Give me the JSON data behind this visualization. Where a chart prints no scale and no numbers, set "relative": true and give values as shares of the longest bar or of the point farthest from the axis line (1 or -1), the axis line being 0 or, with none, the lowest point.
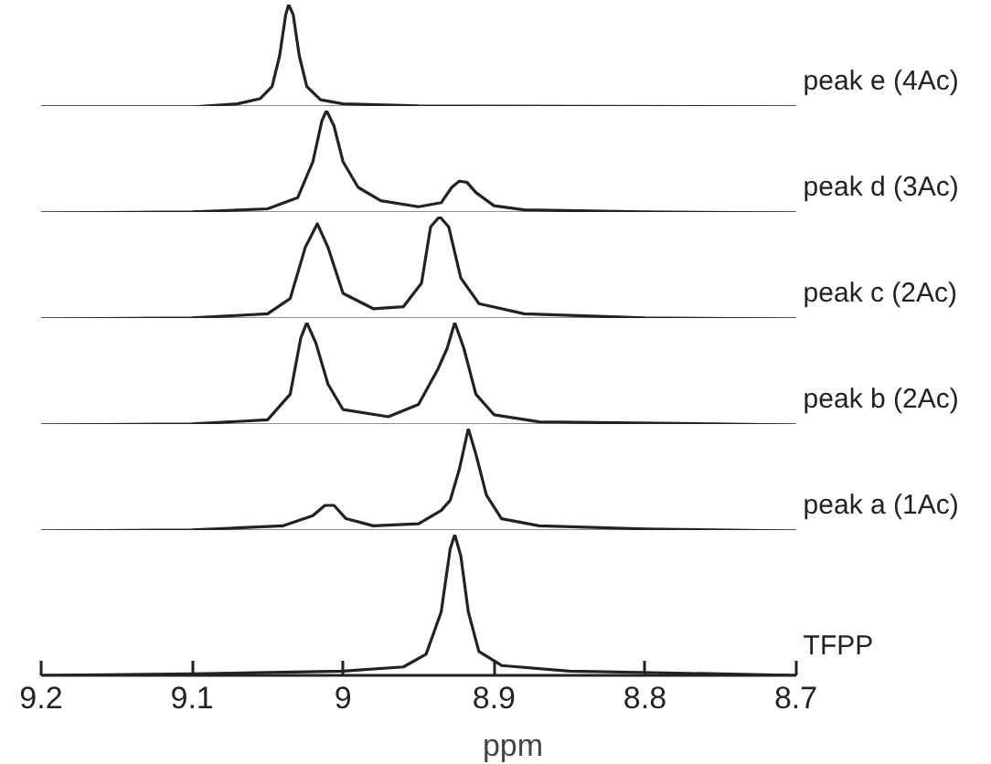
{
  "chart_data": [
    {
      "type": "line",
      "relative": true,
      "xlim": [
        9.2,
        8.7
      ],
      "tick_labels": false,
      "series": [
        {
          "name": "peak e (4Ac)",
          "color": "#222222",
          "x": [
            9.2,
            9.1,
            9.07,
            9.055,
            9.047,
            9.042,
            9.038,
            9.036,
            9.033,
            9.029,
            9.024,
            9.015,
            9.0,
            8.95,
            8.7
          ],
          "values": [
            0,
            0,
            0.03,
            0.08,
            0.2,
            0.5,
            0.9,
            1,
            0.9,
            0.5,
            0.2,
            0.07,
            0.03,
            0.01,
            0
          ]
        }
      ]
    },
    {
      "type": "line",
      "relative": true,
      "xlim": [
        9.2,
        8.7
      ],
      "tick_labels": false,
      "series": [
        {
          "name": "peak d (3Ac)",
          "color": "#222222",
          "x": [
            9.2,
            9.1,
            9.05,
            9.03,
            9.02,
            9.014,
            9.011,
            9.006,
            9.0,
            8.99,
            8.975,
            8.95,
            8.935,
            8.928,
            8.923,
            8.918,
            8.912,
            8.9,
            8.88,
            8.8,
            8.7
          ],
          "values": [
            0,
            0.01,
            0.04,
            0.15,
            0.5,
            0.9,
            1,
            0.85,
            0.5,
            0.25,
            0.12,
            0.06,
            0.1,
            0.25,
            0.31,
            0.3,
            0.2,
            0.07,
            0.03,
            0.01,
            0
          ]
        }
      ]
    },
    {
      "type": "line",
      "relative": true,
      "xlim": [
        9.2,
        8.7
      ],
      "tick_labels": false,
      "series": [
        {
          "name": "peak c (2Ac)",
          "color": "#222222",
          "x": [
            9.2,
            9.1,
            9.05,
            9.035,
            9.025,
            9.017,
            9.01,
            9.0,
            8.98,
            8.96,
            8.948,
            8.942,
            8.936,
            8.93,
            8.922,
            8.91,
            8.88,
            8.8,
            8.7
          ],
          "values": [
            0,
            0.01,
            0.05,
            0.2,
            0.7,
            0.93,
            0.7,
            0.25,
            0.1,
            0.12,
            0.35,
            0.9,
            1,
            0.9,
            0.4,
            0.15,
            0.05,
            0.01,
            0
          ]
        }
      ]
    },
    {
      "type": "line",
      "relative": true,
      "xlim": [
        9.2,
        8.7
      ],
      "tick_labels": false,
      "series": [
        {
          "name": "peak b (2Ac)",
          "color": "#222222",
          "x": [
            9.2,
            9.1,
            9.05,
            9.035,
            9.028,
            9.024,
            9.018,
            9.01,
            9.0,
            8.97,
            8.95,
            8.937,
            8.931,
            8.926,
            8.92,
            8.912,
            8.9,
            8.87,
            8.7
          ],
          "values": [
            0,
            0.01,
            0.05,
            0.3,
            0.85,
            1,
            0.8,
            0.4,
            0.15,
            0.08,
            0.2,
            0.55,
            0.75,
            1,
            0.75,
            0.3,
            0.1,
            0.03,
            0
          ]
        }
      ]
    },
    {
      "type": "line",
      "relative": true,
      "xlim": [
        9.2,
        8.7
      ],
      "tick_labels": false,
      "series": [
        {
          "name": "peak a (1Ac)",
          "color": "#222222",
          "x": [
            9.2,
            9.1,
            9.04,
            9.02,
            9.012,
            9.006,
            8.998,
            8.98,
            8.95,
            8.935,
            8.929,
            8.923,
            8.917,
            8.912,
            8.905,
            8.895,
            8.87,
            8.8,
            8.7
          ],
          "values": [
            0,
            0.01,
            0.05,
            0.15,
            0.25,
            0.25,
            0.12,
            0.05,
            0.07,
            0.2,
            0.3,
            0.6,
            1,
            0.75,
            0.35,
            0.12,
            0.05,
            0.02,
            0
          ]
        }
      ]
    },
    {
      "type": "line",
      "relative": true,
      "xlim": [
        9.2,
        8.7
      ],
      "xticks": [
        9.2,
        9.1,
        {
          "value": 9.0,
          "label": "9"
        },
        8.9,
        8.8,
        8.7
      ],
      "xlabel": "ppm",
      "tick_labels": "x",
      "series": [
        {
          "name": "TFPP",
          "color": "#222222",
          "x": [
            9.2,
            9.1,
            9.0,
            8.96,
            8.945,
            8.935,
            8.929,
            8.926,
            8.922,
            8.917,
            8.91,
            8.895,
            8.85,
            8.7
          ],
          "values": [
            0,
            0.01,
            0.03,
            0.06,
            0.15,
            0.45,
            0.9,
            1,
            0.85,
            0.45,
            0.17,
            0.07,
            0.03,
            0
          ]
        }
      ]
    }
  ]
}
